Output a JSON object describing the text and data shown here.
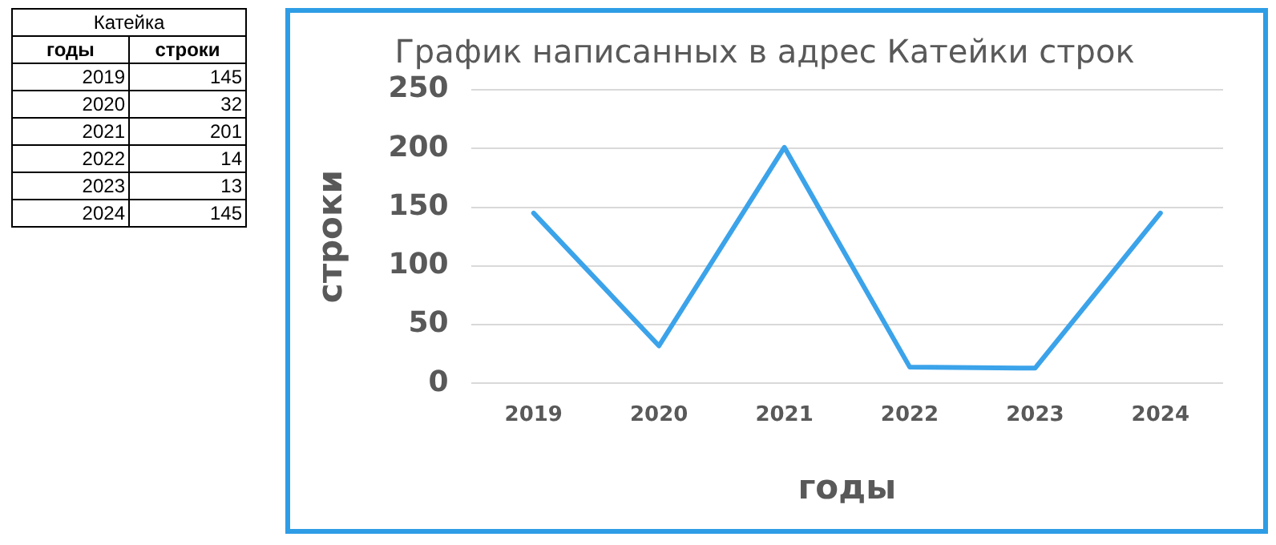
{
  "chart_data": [
    {
      "type": "heatmap",
      "title": "Катейка",
      "ylabel": "годы",
      "categories": [
        "строки"
      ],
      "y_categories": [
        "2019",
        "2020",
        "2021",
        "2022",
        "2023",
        "2024"
      ],
      "cells": [
        [
          145
        ],
        [
          32
        ],
        [
          201
        ],
        [
          14
        ],
        [
          13
        ],
        [
          145
        ]
      ],
      "data_labels": true
    },
    {
      "type": "line",
      "title": "График написанных в адрес Катейки строк",
      "xlabel": "годы",
      "ylabel": "строки",
      "categories": [
        "2019",
        "2020",
        "2021",
        "2022",
        "2023",
        "2024"
      ],
      "series": [
        {
          "color": "#3ba3ea",
          "values": [
            145,
            32,
            201,
            14,
            13,
            145
          ]
        }
      ],
      "ylim": [
        0,
        250
      ],
      "yticks": [
        0,
        50,
        100,
        150,
        200,
        250
      ],
      "grid": "y",
      "legend": false,
      "marker": "none",
      "line_style": "solid"
    }
  ]
}
